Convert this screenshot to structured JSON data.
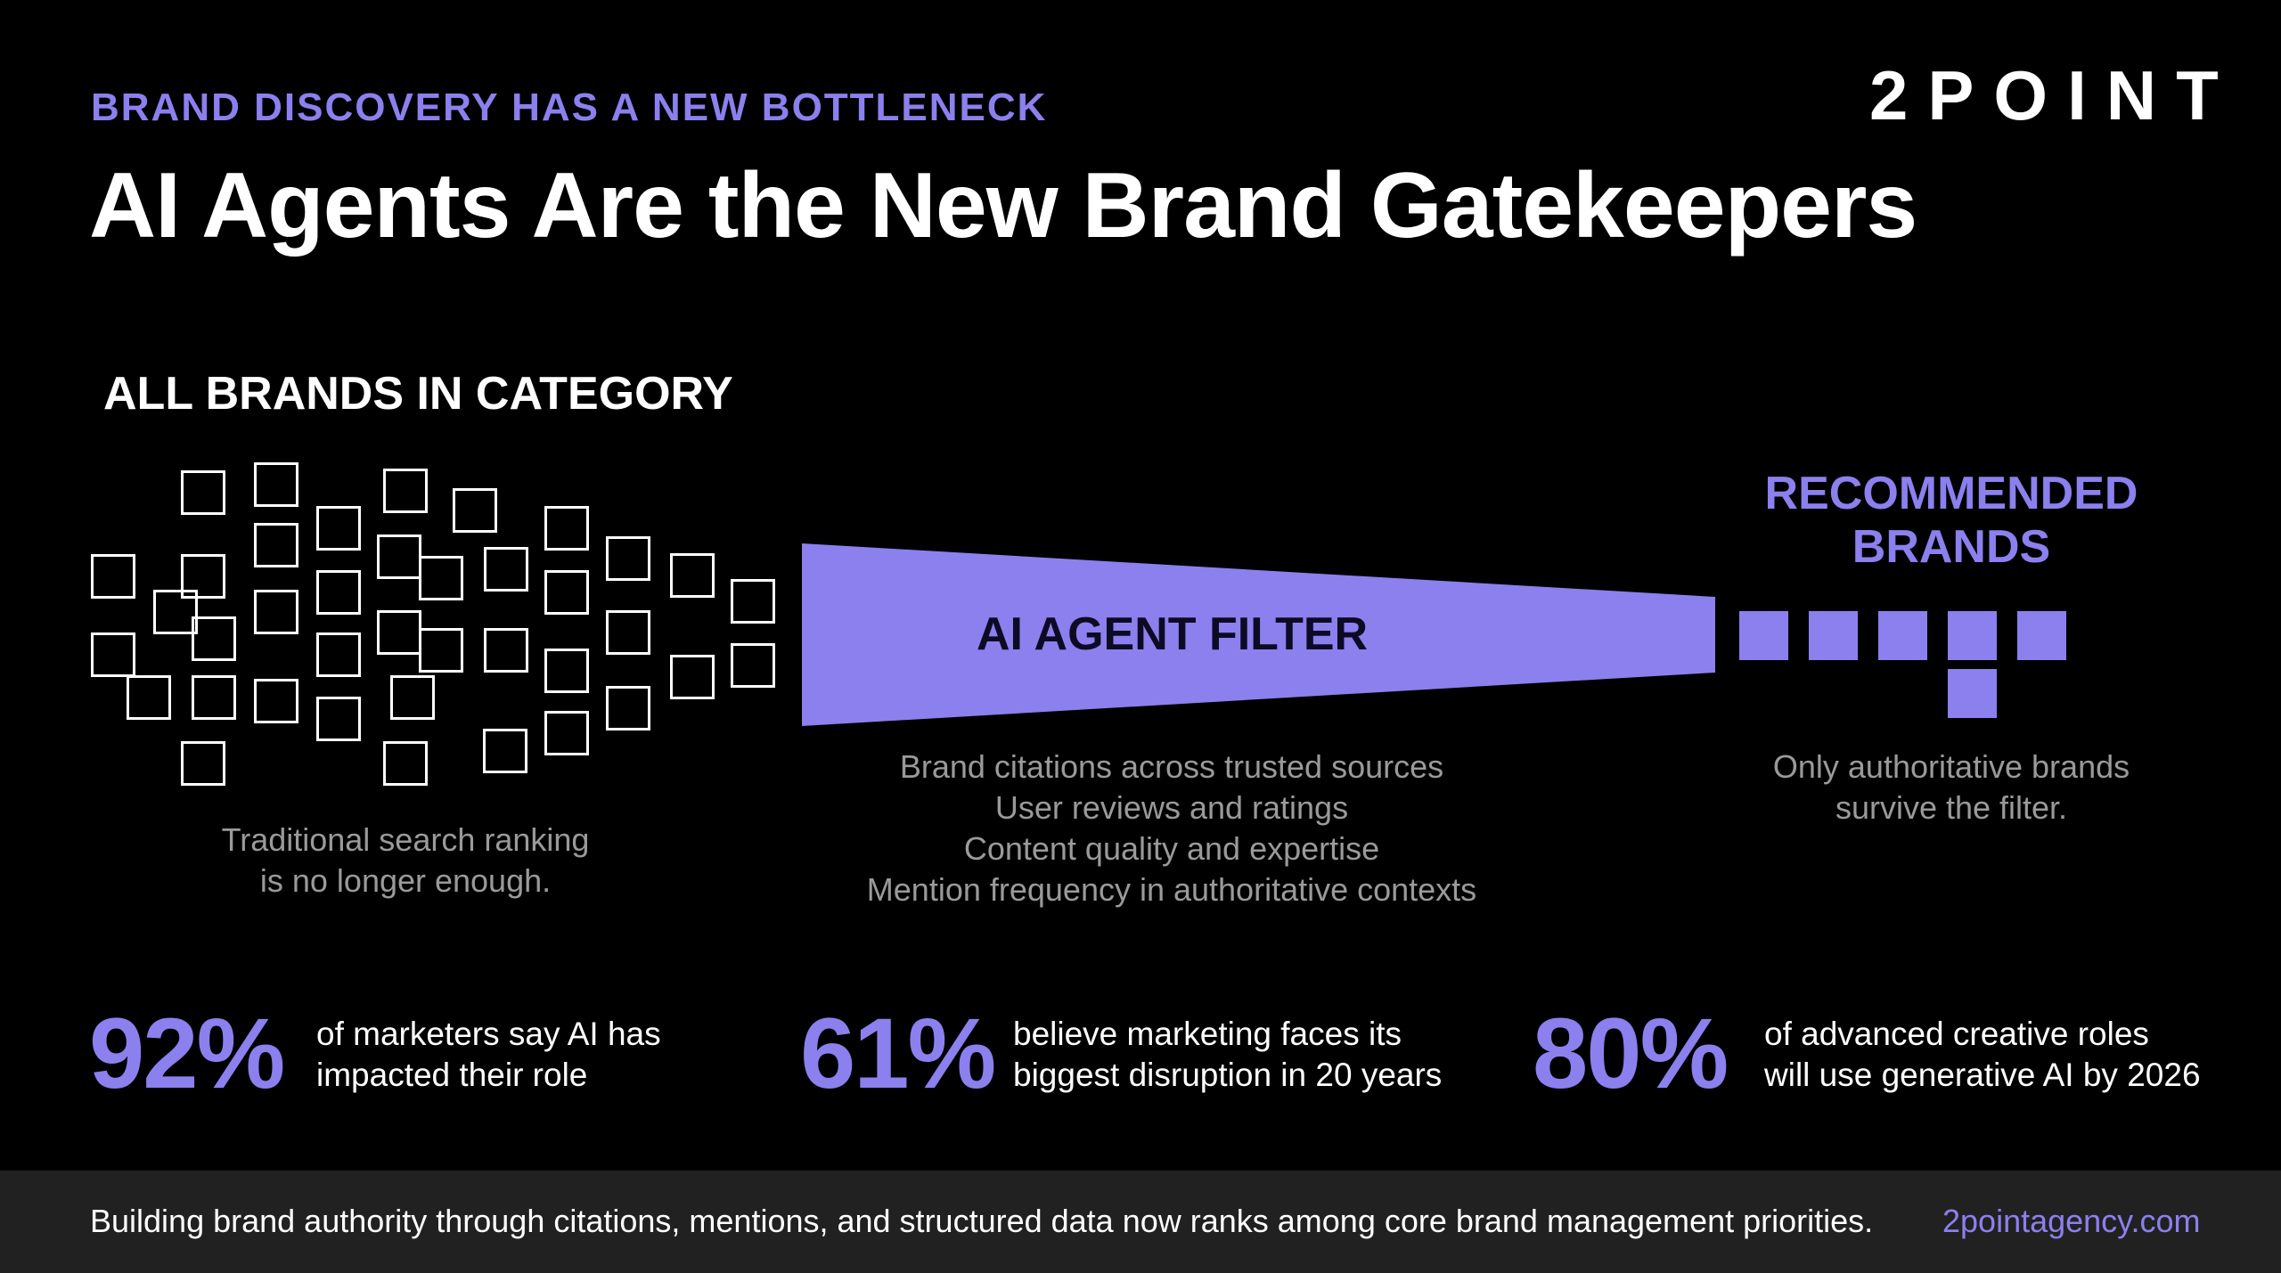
{
  "header": {
    "eyebrow": "BRAND DISCOVERY HAS A NEW BOTTLENECK",
    "title": "AI Agents Are the New Brand Gatekeepers",
    "logo": "2POINT"
  },
  "diagram": {
    "left_heading": "ALL BRANDS IN CATEGORY",
    "left_caption": [
      "Traditional search ranking",
      "is no longer enough."
    ],
    "filter_label": "AI AGENT FILTER",
    "filter_criteria": [
      "Brand citations across trusted sources",
      "User reviews and ratings",
      "Content quality and expertise",
      "Mention frequency in authoritative contexts"
    ],
    "right_heading": [
      "RECOMMENDED",
      "BRANDS"
    ],
    "right_caption": [
      "Only authoritative brands",
      "survive the filter."
    ]
  },
  "stats": [
    {
      "value": "92%",
      "lines": [
        "of marketers say AI has",
        "impacted their role"
      ]
    },
    {
      "value": "61%",
      "lines": [
        "believe marketing faces its",
        "biggest disruption in 20 years"
      ]
    },
    {
      "value": "80%",
      "lines": [
        "of advanced creative roles",
        "will use generative AI by 2026"
      ]
    }
  ],
  "footer": {
    "text": "Building brand authority through citations, mentions, and structured data now ranks among core brand management priorities.",
    "link": "2pointagency.com"
  },
  "colors": {
    "background": "#000000",
    "accent": "#8b80ee",
    "footer_bar": "#212121",
    "caption_gray": "#9a9a9a"
  }
}
